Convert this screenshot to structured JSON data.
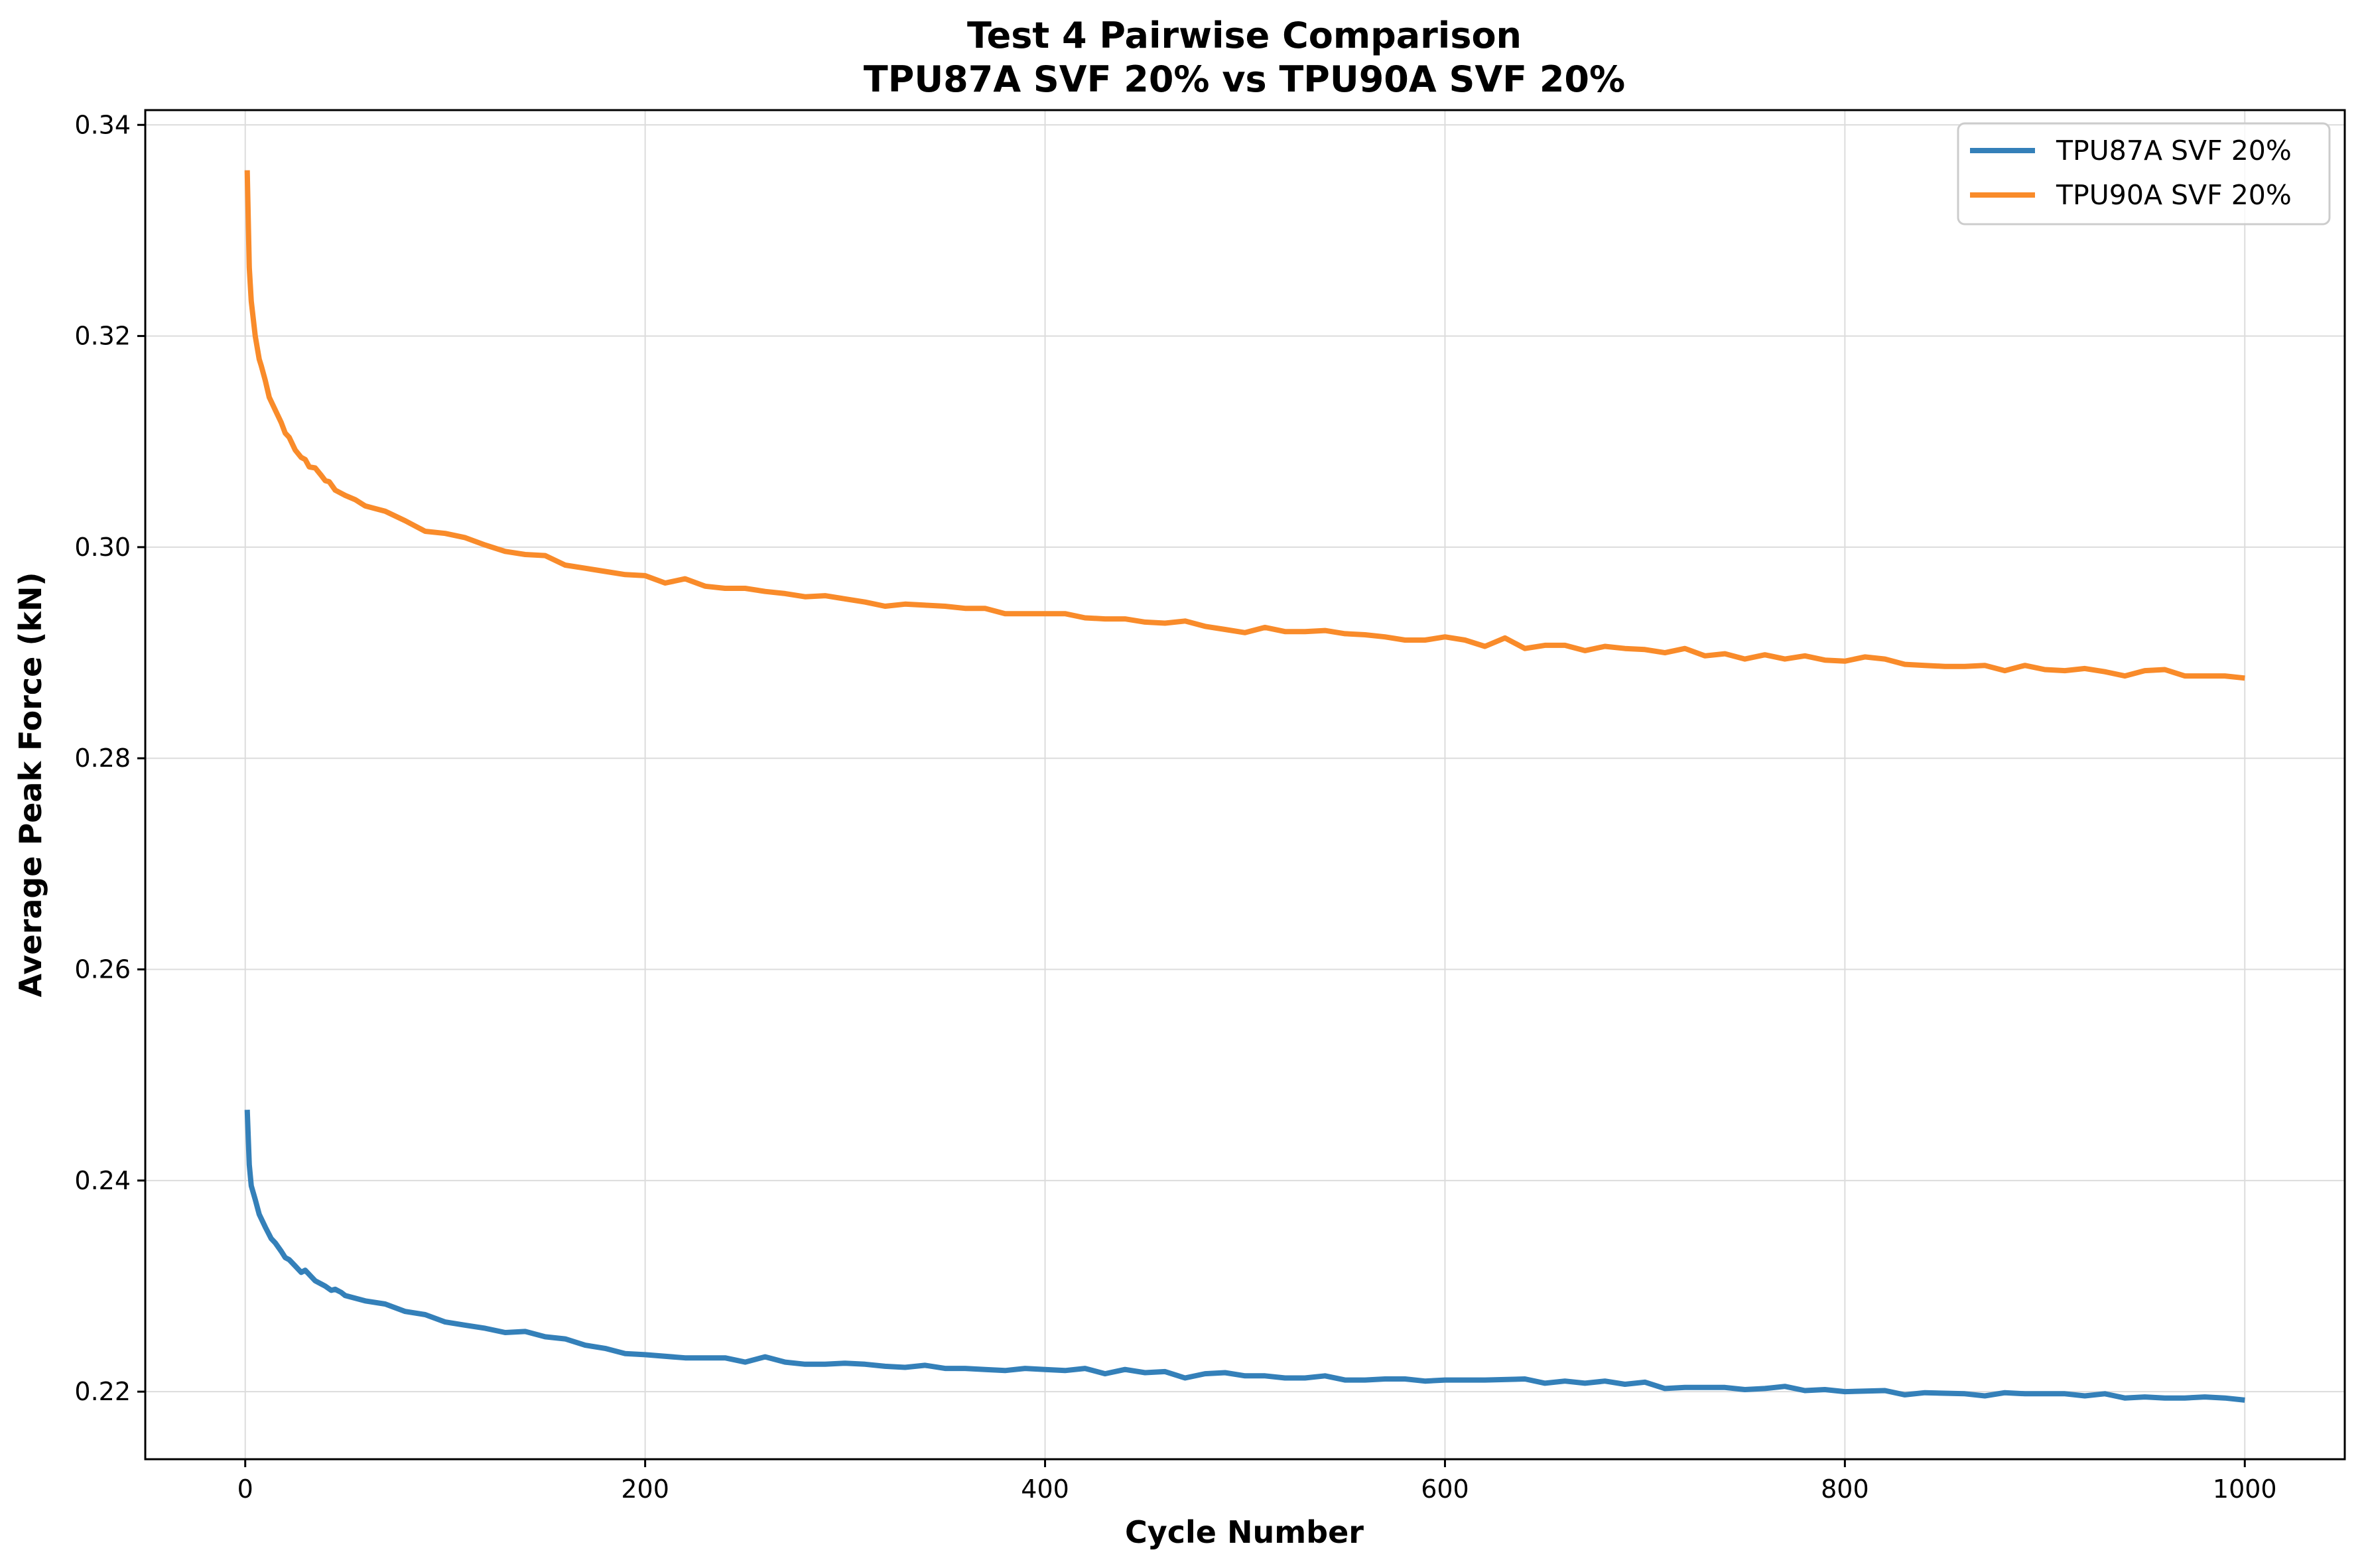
{
  "chart_data": {
    "type": "line",
    "title_line1": "Test 4 Pairwise Comparison",
    "title_line2": "TPU87A SVF 20% vs TPU90A SVF 20%",
    "xlabel": "Cycle Number",
    "ylabel": "Average Peak Force (kN)",
    "xlim": [
      -50,
      1050
    ],
    "ylim": [
      0.2136,
      0.3414
    ],
    "xticks": [
      0,
      200,
      400,
      600,
      800,
      1000
    ],
    "yticks": [
      0.22,
      0.24,
      0.26,
      0.28,
      0.3,
      0.32,
      0.34
    ],
    "xtick_labels": [
      "0",
      "200",
      "400",
      "600",
      "800",
      "1000"
    ],
    "ytick_labels": [
      "0.22",
      "0.24",
      "0.26",
      "0.28",
      "0.30",
      "0.32",
      "0.34"
    ],
    "grid": true,
    "legend_position": "top-right",
    "series": [
      {
        "name": "TPU87A SVF 20%",
        "color": "#3480b9",
        "x": [
          1,
          2,
          3,
          5,
          7,
          10,
          13,
          15,
          18,
          20,
          22,
          25,
          28,
          30,
          33,
          35,
          38,
          40,
          43,
          45,
          48,
          50,
          60,
          70,
          80,
          90,
          100,
          110,
          120,
          130,
          140,
          150,
          160,
          170,
          180,
          190,
          200,
          220,
          240,
          250,
          260,
          270,
          280,
          290,
          300,
          310,
          320,
          330,
          340,
          350,
          360,
          370,
          380,
          390,
          400,
          410,
          420,
          430,
          440,
          450,
          460,
          470,
          480,
          490,
          500,
          510,
          520,
          530,
          540,
          550,
          560,
          570,
          580,
          590,
          600,
          620,
          640,
          650,
          660,
          670,
          680,
          690,
          700,
          710,
          720,
          730,
          740,
          750,
          760,
          770,
          780,
          790,
          800,
          820,
          830,
          840,
          860,
          870,
          880,
          890,
          900,
          910,
          920,
          930,
          940,
          950,
          960,
          970,
          980,
          990,
          1000
        ],
        "values": [
          0.2467,
          0.2415,
          0.2395,
          0.2382,
          0.2368,
          0.2356,
          0.2345,
          0.2341,
          0.2333,
          0.2327,
          0.2325,
          0.2319,
          0.2313,
          0.2315,
          0.2309,
          0.2305,
          0.2302,
          0.23,
          0.2296,
          0.2297,
          0.2294,
          0.2291,
          0.2286,
          0.2283,
          0.2276,
          0.2273,
          0.2266,
          0.2263,
          0.226,
          0.2256,
          0.2257,
          0.2252,
          0.225,
          0.2244,
          0.2241,
          0.2236,
          0.2235,
          0.2232,
          0.2232,
          0.2228,
          0.2233,
          0.2228,
          0.2226,
          0.2226,
          0.2227,
          0.2226,
          0.2224,
          0.2223,
          0.2225,
          0.2222,
          0.2222,
          0.2221,
          0.222,
          0.2222,
          0.2221,
          0.222,
          0.2222,
          0.2217,
          0.2221,
          0.2218,
          0.2219,
          0.2213,
          0.2217,
          0.2218,
          0.2215,
          0.2215,
          0.2213,
          0.2213,
          0.2215,
          0.2211,
          0.2211,
          0.2212,
          0.2212,
          0.221,
          0.2211,
          0.2211,
          0.2212,
          0.2208,
          0.221,
          0.2208,
          0.221,
          0.2207,
          0.2209,
          0.2203,
          0.2204,
          0.2204,
          0.2204,
          0.2202,
          0.2203,
          0.2205,
          0.2201,
          0.2202,
          0.22,
          0.2201,
          0.2197,
          0.2199,
          0.2198,
          0.2196,
          0.2199,
          0.2198,
          0.2198,
          0.2198,
          0.2196,
          0.2198,
          0.2194,
          0.2195,
          0.2194,
          0.2194,
          0.2195,
          0.2194,
          0.2192
        ]
      },
      {
        "name": "TPU90A SVF 20%",
        "color": "#f98b2a",
        "x": [
          1,
          2,
          3,
          5,
          7,
          8,
          10,
          12,
          13,
          15,
          18,
          20,
          22,
          25,
          28,
          30,
          32,
          35,
          38,
          40,
          42,
          45,
          50,
          55,
          60,
          70,
          80,
          90,
          100,
          110,
          120,
          130,
          140,
          150,
          160,
          170,
          180,
          190,
          200,
          210,
          220,
          230,
          240,
          250,
          260,
          270,
          280,
          290,
          300,
          310,
          320,
          330,
          340,
          350,
          360,
          370,
          380,
          390,
          400,
          410,
          420,
          430,
          440,
          450,
          460,
          470,
          480,
          490,
          500,
          510,
          520,
          530,
          540,
          550,
          560,
          570,
          580,
          590,
          600,
          610,
          620,
          630,
          640,
          650,
          660,
          670,
          680,
          690,
          700,
          710,
          720,
          730,
          740,
          750,
          760,
          770,
          780,
          790,
          800,
          810,
          820,
          830,
          840,
          850,
          860,
          870,
          880,
          890,
          900,
          910,
          920,
          930,
          940,
          950,
          960,
          970,
          980,
          990,
          1000
        ],
        "values": [
          0.3357,
          0.3265,
          0.3233,
          0.32,
          0.3178,
          0.3172,
          0.3158,
          0.3142,
          0.3138,
          0.313,
          0.3118,
          0.3108,
          0.3104,
          0.3092,
          0.3085,
          0.3083,
          0.3076,
          0.3075,
          0.3068,
          0.3063,
          0.3062,
          0.3054,
          0.3049,
          0.3045,
          0.3039,
          0.3034,
          0.3025,
          0.3015,
          0.3013,
          0.3009,
          0.3002,
          0.2996,
          0.2993,
          0.2992,
          0.2983,
          0.298,
          0.2977,
          0.2974,
          0.2973,
          0.2966,
          0.297,
          0.2963,
          0.2961,
          0.2961,
          0.2958,
          0.2956,
          0.2953,
          0.2954,
          0.2951,
          0.2948,
          0.2944,
          0.2946,
          0.2945,
          0.2944,
          0.2942,
          0.2942,
          0.2937,
          0.2937,
          0.2937,
          0.2937,
          0.2933,
          0.2932,
          0.2932,
          0.2929,
          0.2928,
          0.293,
          0.2925,
          0.2922,
          0.2919,
          0.2924,
          0.292,
          0.292,
          0.2921,
          0.2918,
          0.2917,
          0.2915,
          0.2912,
          0.2912,
          0.2915,
          0.2912,
          0.2906,
          0.2914,
          0.2904,
          0.2907,
          0.2907,
          0.2902,
          0.2906,
          0.2904,
          0.2903,
          0.29,
          0.2904,
          0.2897,
          0.2899,
          0.2894,
          0.2898,
          0.2894,
          0.2897,
          0.2893,
          0.2892,
          0.2896,
          0.2894,
          0.2889,
          0.2888,
          0.2887,
          0.2887,
          0.2888,
          0.2883,
          0.2888,
          0.2884,
          0.2883,
          0.2885,
          0.2882,
          0.2878,
          0.2883,
          0.2884,
          0.2878,
          0.2878,
          0.2878,
          0.2876
        ]
      }
    ]
  }
}
